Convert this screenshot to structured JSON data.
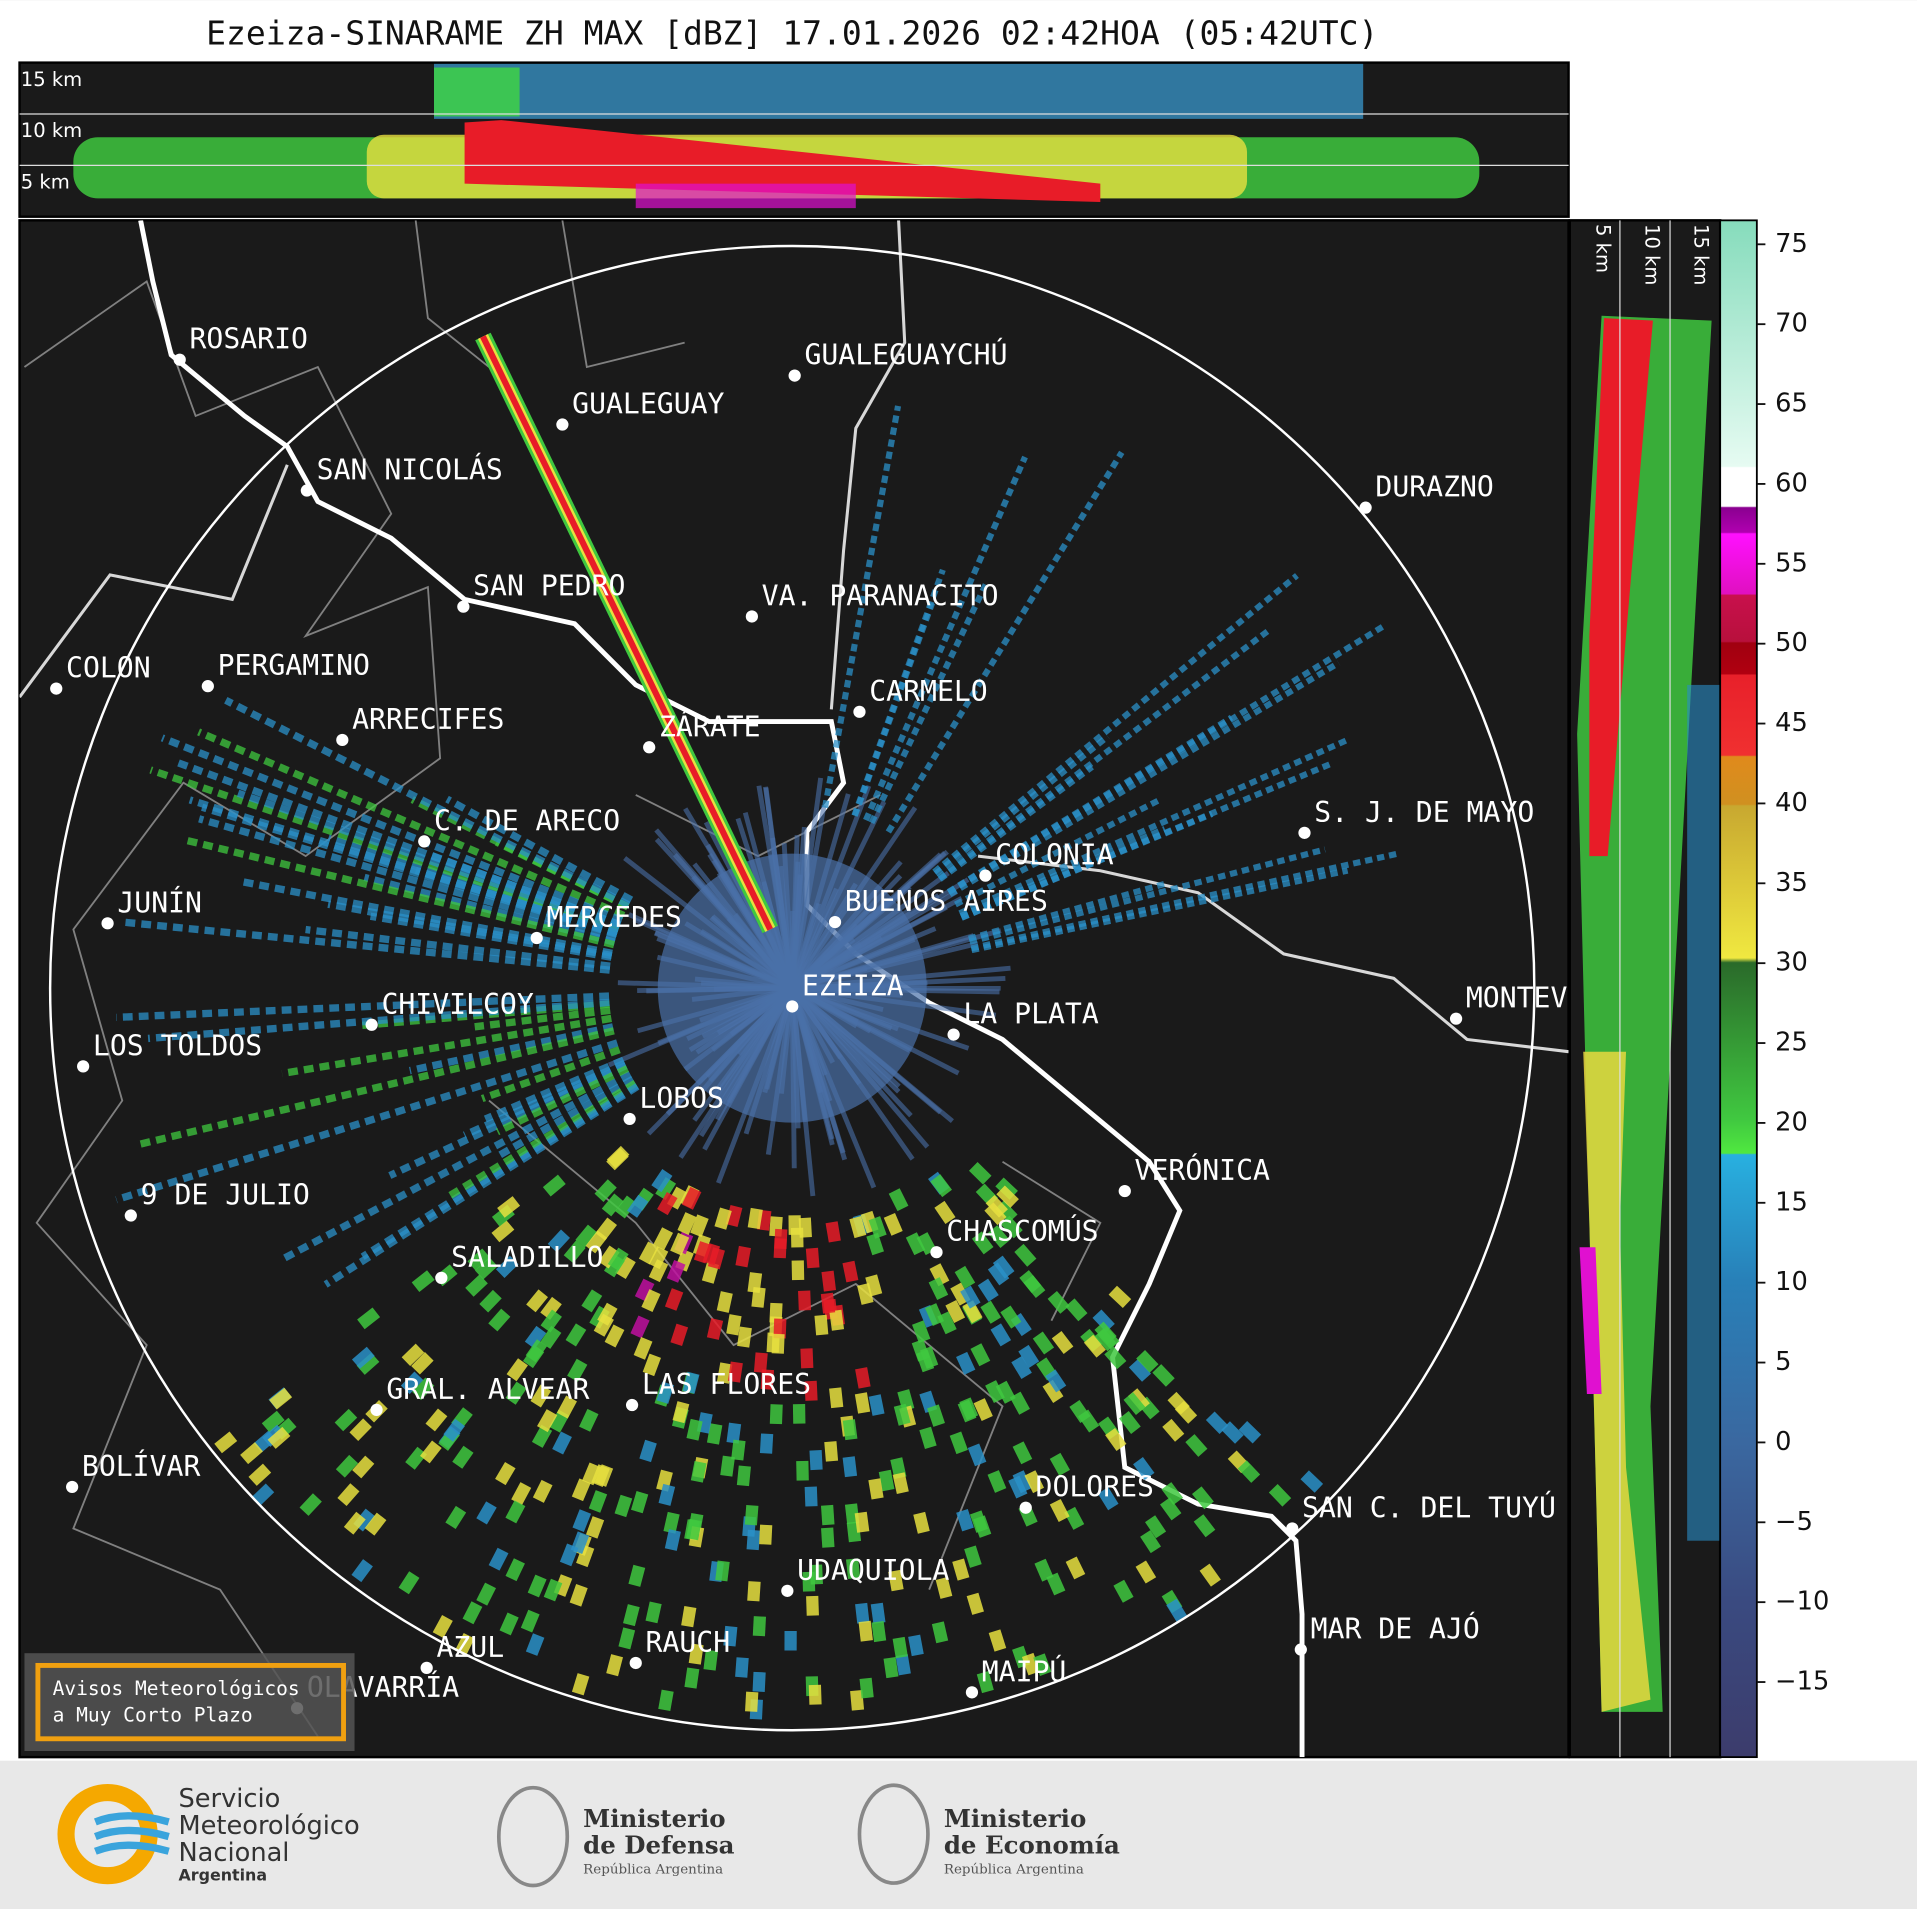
{
  "title": "Ezeiza-SINARAME ZH MAX [dBZ] 17.01.2026 02:42HOA (05:42UTC)",
  "profile_labels": {
    "top": [
      "15 km",
      "10 km",
      "5 km"
    ],
    "side": [
      "5 km",
      "10 km",
      "15 km"
    ]
  },
  "cities": [
    "ROSARIO",
    "GUALEGUAYCHÚ",
    "GUALEGUAY",
    "SAN NICOLÁS",
    "DURAZNO",
    "SAN PEDRO",
    "VA. PARANACITO",
    "COLON",
    "PERGAMINO",
    "CARMELO",
    "ARRECIFES",
    "ZÁRATE",
    "S. J. DE MAYO",
    "C. DE ARECO",
    "COLONIA",
    "BUENOS AIRES",
    "JUNÍN",
    "MERCEDES",
    "EZEIZA",
    "MONTEVIDEO",
    "LA PLATA",
    "CHIVILCOY",
    "LOS TOLDOS",
    "LOBOS",
    "VERÓNICA",
    "9 DE JULIO",
    "CHASCOMÚS",
    "SALADILLO",
    "GRAL. ALVEAR",
    "LAS FLORES",
    "BOLÍVAR",
    "DOLORES",
    "SAN C. DEL TUYÚ",
    "UDAQUIOLA",
    "MAR DE AJÓ",
    "RAUCH",
    "AZUL",
    "OLAVARRÍA",
    "MAIPÚ"
  ],
  "colorbar": {
    "lim": [
      -19.7,
      76.5
    ],
    "ticks": [
      75,
      70,
      65,
      60,
      55,
      50,
      45,
      40,
      35,
      30,
      25,
      20,
      15,
      10,
      5,
      0,
      {
        "value": -5,
        "label": "−5"
      },
      {
        "value": -10,
        "label": "−10"
      },
      {
        "value": -15,
        "label": "−15"
      }
    ]
  },
  "notice": [
    "Avisos Meteorológicos",
    "a Muy Corto Plazo"
  ],
  "logos": [
    [
      "Servicio",
      "Meteorológico",
      "Nacional",
      "Argentina"
    ],
    [
      "Ministerio",
      "de Defensa",
      "República Argentina"
    ],
    [
      "Ministerio",
      "de Economía",
      "República Argentina"
    ]
  ]
}
